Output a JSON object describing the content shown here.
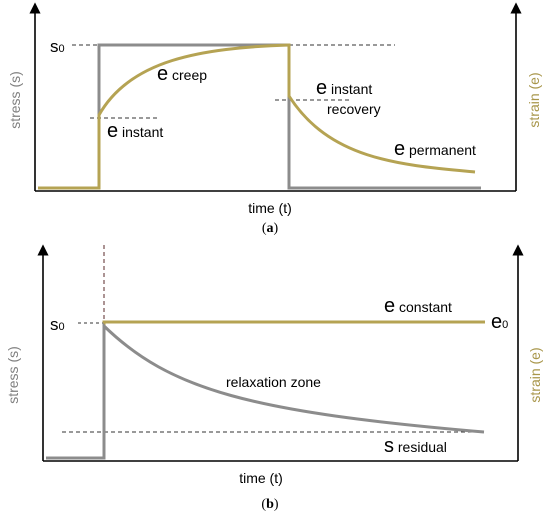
{
  "colors": {
    "axis": "#000000",
    "stress_curve": "#8c8c8c",
    "strain_curve": "#b5a353",
    "strain_label": "#a8964a",
    "stress_label": "#7f7f7f",
    "guide_dash": "#333333"
  },
  "panel_a": {
    "y_left_label": "stress (s)",
    "y_right_label": "strain (e)",
    "x_label": "time (t)",
    "caption_open": "(",
    "caption_letter": "a",
    "caption_close": ")",
    "sigma0": {
      "symbol": "s",
      "subscript": "0"
    },
    "creep": {
      "symbol": "e",
      "text": " creep"
    },
    "instant": {
      "symbol": "e",
      "text": " instant"
    },
    "instant_recovery": {
      "symbol": "e",
      "text": " instant",
      "line2": "recovery"
    },
    "permanent": {
      "symbol": "e",
      "text": " permanent"
    }
  },
  "panel_b": {
    "y_left_label": "stress (s)",
    "y_right_label": "strain (e)",
    "x_label": "time (t)",
    "caption_open": "(",
    "caption_letter": "b",
    "caption_close": ")",
    "sigma0": {
      "symbol": "s",
      "subscript": "0"
    },
    "constant": {
      "symbol": "e",
      "text": " constant"
    },
    "eps0": {
      "symbol": "e",
      "subscript": "0"
    },
    "relaxation": "relaxation zone",
    "residual": {
      "symbol": "s",
      "text": " residual"
    }
  }
}
